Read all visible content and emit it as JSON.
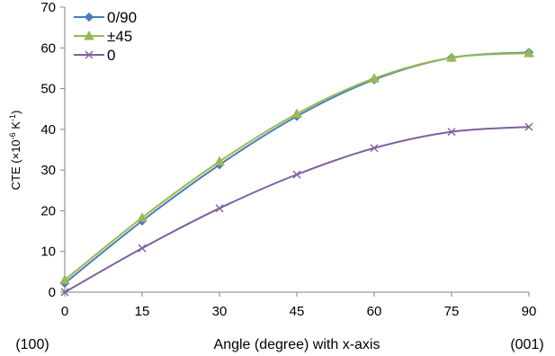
{
  "chart_data": {
    "type": "line",
    "x": [
      0,
      15,
      30,
      45,
      60,
      75,
      90
    ],
    "series": [
      {
        "name": "0/90",
        "values": [
          2.2,
          17.5,
          31.3,
          43.2,
          52.2,
          57.6,
          58.9
        ],
        "color": "#4a7ebb",
        "marker": "diamond"
      },
      {
        "name": "±45",
        "values": [
          3.0,
          18.3,
          32.1,
          43.8,
          52.5,
          57.6,
          58.7
        ],
        "color": "#98b954",
        "marker": "triangle"
      },
      {
        "name": "0",
        "values": [
          0,
          10.8,
          20.6,
          28.9,
          35.4,
          39.4,
          40.6
        ],
        "color": "#7d5fa0",
        "marker": "x"
      }
    ],
    "xticks": [
      "0",
      "15",
      "30",
      "45",
      "60",
      "75",
      "90"
    ],
    "yticks": [
      "0",
      "10",
      "20",
      "30",
      "40",
      "50",
      "60",
      "70"
    ],
    "xlim": [
      0,
      90
    ],
    "ylim": [
      0,
      70
    ],
    "xlabel": "Angle (degree) with x-axis",
    "ylabel_main": "CTE (×10",
    "ylabel_exp1": "-6",
    "ylabel_mid": " K",
    "ylabel_exp2": "-1",
    "ylabel_end": ")",
    "x_left_note": "(100)",
    "x_right_note": "(001)",
    "legend_position": "top-left",
    "grid": false
  }
}
